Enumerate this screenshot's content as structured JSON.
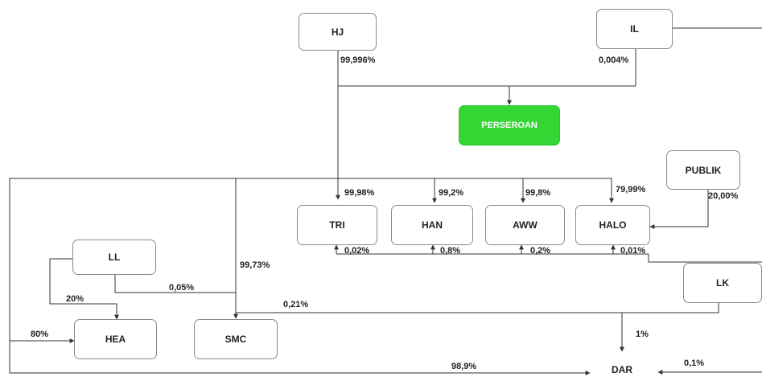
{
  "colors": {
    "main_node": "#33d633",
    "line": "#333333"
  },
  "nodes": {
    "hj": "HJ",
    "il": "IL",
    "perseroan": "PERSEROAN",
    "publik": "PUBLIK",
    "tri": "TRI",
    "han": "HAN",
    "aww": "AWW",
    "halo": "HALO",
    "ll": "LL",
    "lk": "LK",
    "hea": "HEA",
    "smc": "SMC",
    "dar": "DAR"
  },
  "labels": {
    "hj_perseroan": "99,996%",
    "il_perseroan": "0,004%",
    "to_tri": "99,98%",
    "to_han": "99,2%",
    "to_aww": "99,8%",
    "to_halo": "79,99%",
    "publik_halo": "20,00%",
    "tri_up": "0,02%",
    "han_up": "0,8%",
    "aww_up": "0,2%",
    "halo_up": "0,01%",
    "to_smc": "99,73%",
    "ll_smc": "0,05%",
    "ll_hea": "20%",
    "left_hea": "80%",
    "lk_line": "0,21%",
    "lk_dar": "1%",
    "to_dar": "98,9%",
    "right_dar": "0,1%"
  }
}
